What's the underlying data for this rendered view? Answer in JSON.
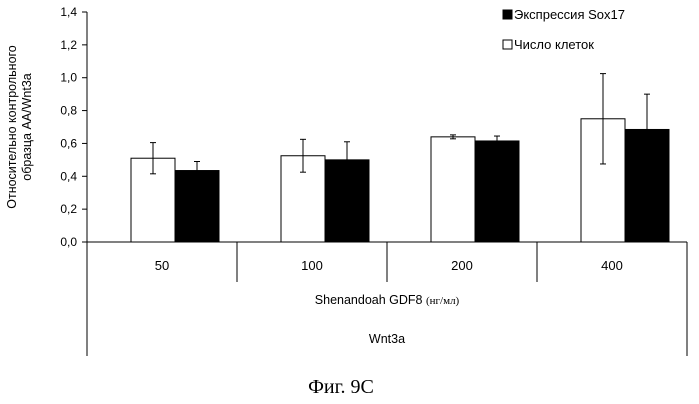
{
  "chart_data": {
    "type": "bar",
    "ylabel_line1": "Относительно контрольного",
    "ylabel_line2": "образца AA/Wnt3a",
    "ylim": [
      0,
      1.4
    ],
    "yticks": [
      "0,0",
      "0,2",
      "0,4",
      "0,6",
      "0,8",
      "1,0",
      "1,2",
      "1,4"
    ],
    "ytick_values": [
      0,
      0.2,
      0.4,
      0.6,
      0.8,
      1.0,
      1.2,
      1.4
    ],
    "categories": [
      "50",
      "100",
      "200",
      "400"
    ],
    "series": [
      {
        "name": "Число клеток",
        "color": "#ffffff",
        "values": [
          0.51,
          0.525,
          0.64,
          0.75
        ],
        "errors": [
          0.095,
          0.1,
          0.012,
          0.275
        ]
      },
      {
        "name": "Экспрессия Sox17",
        "color": "#000000",
        "values": [
          0.435,
          0.5,
          0.615,
          0.685
        ],
        "errors": [
          0.055,
          0.11,
          0.03,
          0.215
        ]
      }
    ],
    "legend_order": [
      1,
      0
    ],
    "legend_position": "top-right",
    "xlabel_main": "Shenandoah GDF8",
    "xlabel_units": "(нг/мл)",
    "xlabel_group": "Wnt3a"
  },
  "caption": "Фиг. 9C"
}
